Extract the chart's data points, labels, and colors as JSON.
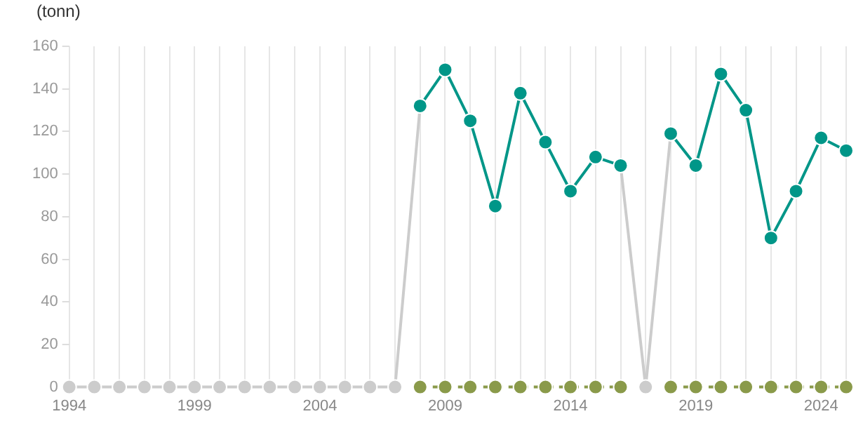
{
  "chart_data": {
    "type": "line",
    "ylabel": "(tonn)",
    "x": [
      1994,
      1995,
      1996,
      1997,
      1998,
      1999,
      2000,
      2001,
      2002,
      2003,
      2004,
      2005,
      2006,
      2007,
      2008,
      2009,
      2010,
      2011,
      2012,
      2013,
      2014,
      2015,
      2016,
      2017,
      2018,
      2019,
      2020,
      2021,
      2022,
      2023,
      2024,
      2025
    ],
    "series": [
      {
        "color": "#cccccc",
        "line_style": "solid",
        "values": [
          0,
          0,
          0,
          0,
          0,
          0,
          0,
          0,
          0,
          0,
          0,
          0,
          0,
          0,
          132,
          null,
          null,
          null,
          null,
          null,
          null,
          null,
          104,
          0,
          119,
          null,
          null,
          null,
          null,
          null,
          null,
          null
        ]
      },
      {
        "color": "#8a9a4a",
        "line_style": "dashed",
        "values": [
          null,
          null,
          null,
          null,
          null,
          null,
          null,
          null,
          null,
          null,
          null,
          null,
          null,
          null,
          0,
          0,
          0,
          0,
          0,
          0,
          0,
          0,
          0,
          null,
          0,
          0,
          0,
          0,
          0,
          0,
          0,
          0
        ]
      },
      {
        "color": "#009688",
        "line_style": "solid",
        "values": [
          null,
          null,
          null,
          null,
          null,
          null,
          null,
          null,
          null,
          null,
          null,
          null,
          null,
          null,
          132,
          149,
          125,
          85,
          138,
          115,
          92,
          108,
          104,
          null,
          119,
          104,
          147,
          130,
          70,
          92,
          117,
          111
        ]
      }
    ],
    "xlim": [
      1994,
      2025
    ],
    "xticks": [
      1994,
      {
        "value": 1995,
        "label": null
      },
      {
        "value": 1996,
        "label": null
      },
      {
        "value": 1997,
        "label": null
      },
      {
        "value": 1998,
        "label": null
      },
      1999,
      {
        "value": 2000,
        "label": null
      },
      {
        "value": 2001,
        "label": null
      },
      {
        "value": 2002,
        "label": null
      },
      {
        "value": 2003,
        "label": null
      },
      2004,
      {
        "value": 2005,
        "label": null
      },
      {
        "value": 2006,
        "label": null
      },
      {
        "value": 2007,
        "label": null
      },
      {
        "value": 2008,
        "label": null
      },
      2009,
      {
        "value": 2010,
        "label": null
      },
      {
        "value": 2011,
        "label": null
      },
      {
        "value": 2012,
        "label": null
      },
      {
        "value": 2013,
        "label": null
      },
      2014,
      {
        "value": 2015,
        "label": null
      },
      {
        "value": 2016,
        "label": null
      },
      {
        "value": 2017,
        "label": null
      },
      {
        "value": 2018,
        "label": null
      },
      2019,
      {
        "value": 2020,
        "label": null
      },
      {
        "value": 2021,
        "label": null
      },
      {
        "value": 2022,
        "label": null
      },
      {
        "value": 2023,
        "label": null
      },
      2024,
      {
        "value": 2025,
        "label": null
      }
    ],
    "ylim": [
      0,
      160
    ],
    "yticks": [
      0,
      20,
      40,
      60,
      80,
      100,
      120,
      140,
      160
    ],
    "grid": "x",
    "legend": false,
    "marker": "circle"
  }
}
